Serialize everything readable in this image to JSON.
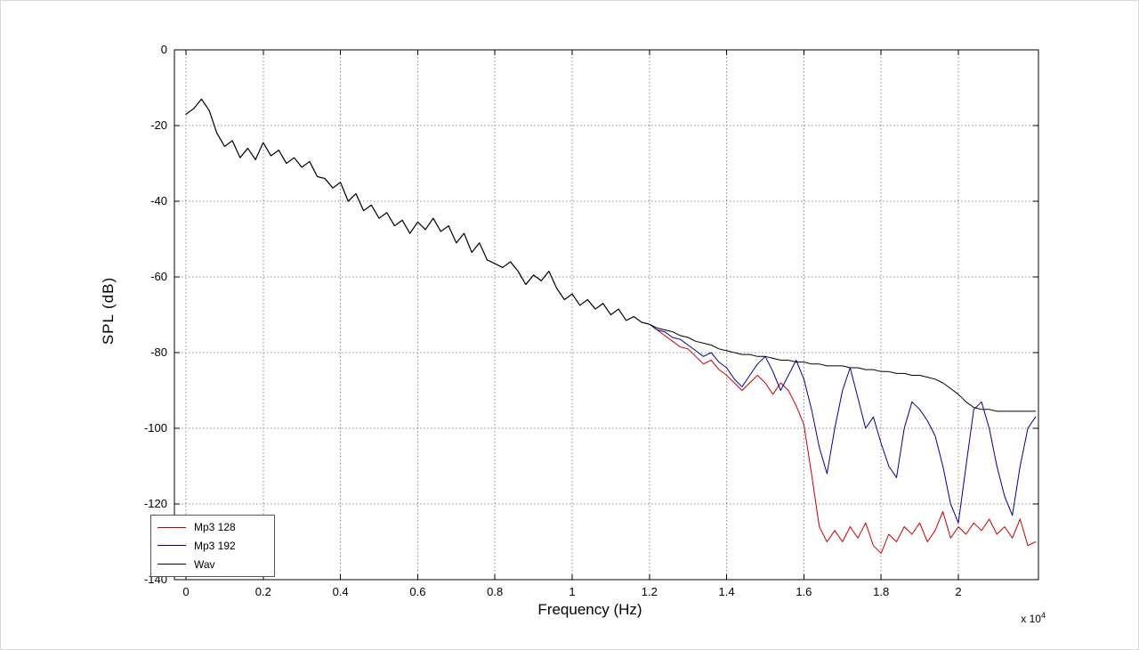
{
  "figure": {
    "background": "#ffffff"
  },
  "chart_data": {
    "type": "line",
    "title": "",
    "xlabel": "Frequency (Hz)",
    "ylabel": "SPL (dB)",
    "x_axis_multiplier": {
      "prefix": "x 10",
      "exponent": "4"
    },
    "xlim": [
      -300,
      22075
    ],
    "ylim": [
      -140,
      0
    ],
    "grid": true,
    "x_ticks": {
      "values": [
        0,
        2000,
        4000,
        6000,
        8000,
        10000,
        12000,
        14000,
        16000,
        18000,
        20000
      ],
      "labels": [
        "0",
        "0.2",
        "0.4",
        "0.6",
        "0.8",
        "1",
        "1.2",
        "1.4",
        "1.6",
        "1.8",
        "2"
      ]
    },
    "y_ticks": {
      "values": [
        0,
        -20,
        -40,
        -60,
        -80,
        -100,
        -120,
        -140
      ],
      "labels": [
        "0",
        "-20",
        "-40",
        "-60",
        "-80",
        "-100",
        "-120",
        "-140"
      ]
    },
    "x_hz": {
      "start": 0,
      "step": 200,
      "count": 111
    },
    "legend": {
      "position": "southwest"
    },
    "series": [
      {
        "name": "Mp3 128",
        "color": "#cc0000",
        "y": [
          -17,
          -15.5,
          -13,
          -16,
          -22,
          -25.5,
          -24,
          -28.5,
          -26,
          -29,
          -24.5,
          -28,
          -26.5,
          -30,
          -28.5,
          -31,
          -29.5,
          -33.5,
          -34,
          -36.5,
          -35,
          -40,
          -38,
          -42.5,
          -41,
          -44.5,
          -43,
          -46.5,
          -45,
          -48.5,
          -45.5,
          -47.5,
          -44.5,
          -48,
          -46.5,
          -51,
          -48.5,
          -53.5,
          -51,
          -55.5,
          -56.5,
          -57.5,
          -56,
          -58.5,
          -62,
          -59.5,
          -61,
          -58.5,
          -63,
          -66,
          -64.5,
          -67.5,
          -66,
          -68.5,
          -67,
          -70,
          -68.5,
          -71.5,
          -70.5,
          -72,
          -72.5,
          -74,
          -75.5,
          -77,
          -78.5,
          -79,
          -81,
          -83,
          -82,
          -84.5,
          -86,
          -88,
          -90,
          -88,
          -86,
          -88,
          -91,
          -88,
          -90,
          -94,
          -99,
          -112,
          -126,
          -130,
          -127,
          -130,
          -126,
          -129,
          -125,
          -131,
          -133,
          -128,
          -130,
          -126,
          -128,
          -125,
          -130,
          -127,
          -122,
          -129,
          -126,
          -128,
          -125,
          -127,
          -124,
          -128,
          -126,
          -129,
          -124,
          -131,
          -130
        ]
      },
      {
        "name": "Mp3 192",
        "color": "#000099",
        "y": [
          -17,
          -15.5,
          -13,
          -16,
          -22,
          -25.5,
          -24,
          -28.5,
          -26,
          -29,
          -24.5,
          -28,
          -26.5,
          -30,
          -28.5,
          -31,
          -29.5,
          -33.5,
          -34,
          -36.5,
          -35,
          -40,
          -38,
          -42.5,
          -41,
          -44.5,
          -43,
          -46.5,
          -45,
          -48.5,
          -45.5,
          -47.5,
          -44.5,
          -48,
          -46.5,
          -51,
          -48.5,
          -53.5,
          -51,
          -55.5,
          -56.5,
          -57.5,
          -56,
          -58.5,
          -62,
          -59.5,
          -61,
          -58.5,
          -63,
          -66,
          -64.5,
          -67.5,
          -66,
          -68.5,
          -67,
          -70,
          -68.5,
          -71.5,
          -70.5,
          -72,
          -72.5,
          -74,
          -74.5,
          -76,
          -76.5,
          -78,
          -79.5,
          -81,
          -80,
          -82.5,
          -84,
          -87,
          -89,
          -86,
          -83,
          -81,
          -85,
          -90,
          -86,
          -82,
          -87,
          -95,
          -105,
          -112,
          -100,
          -90,
          -84,
          -92,
          -100,
          -97,
          -104,
          -110,
          -113,
          -100,
          -93,
          -95,
          -98,
          -102,
          -110,
          -120,
          -125,
          -110,
          -95,
          -93,
          -100,
          -110,
          -118,
          -123,
          -110,
          -100,
          -97
        ]
      },
      {
        "name": "Wav",
        "color": "#000000",
        "y": [
          -17,
          -15.5,
          -13,
          -16,
          -22,
          -25.5,
          -24,
          -28.5,
          -26,
          -29,
          -24.5,
          -28,
          -26.5,
          -30,
          -28.5,
          -31,
          -29.5,
          -33.5,
          -34,
          -36.5,
          -35,
          -40,
          -38,
          -42.5,
          -41,
          -44.5,
          -43,
          -46.5,
          -45,
          -48.5,
          -45.5,
          -47.5,
          -44.5,
          -48,
          -46.5,
          -51,
          -48.5,
          -53.5,
          -51,
          -55.5,
          -56.5,
          -57.5,
          -56,
          -58.5,
          -62,
          -59.5,
          -61,
          -58.5,
          -63,
          -66,
          -64.5,
          -67.5,
          -66,
          -68.5,
          -67,
          -70,
          -68.5,
          -71.5,
          -70.5,
          -72,
          -72.5,
          -73.5,
          -74,
          -74.5,
          -75.5,
          -76,
          -77,
          -77.5,
          -78,
          -79,
          -79.5,
          -80,
          -80.5,
          -80.5,
          -81,
          -81,
          -81.5,
          -82,
          -82,
          -82.5,
          -82.5,
          -83,
          -83,
          -83.5,
          -83.5,
          -83.5,
          -84,
          -84,
          -84.5,
          -84.5,
          -85,
          -85,
          -85.5,
          -85.5,
          -86,
          -86,
          -86.5,
          -87,
          -88,
          -89.5,
          -91,
          -93,
          -94.5,
          -95,
          -95,
          -95.5,
          -95.5,
          -95.5,
          -95.5,
          -95.5,
          -95.5
        ]
      }
    ]
  }
}
